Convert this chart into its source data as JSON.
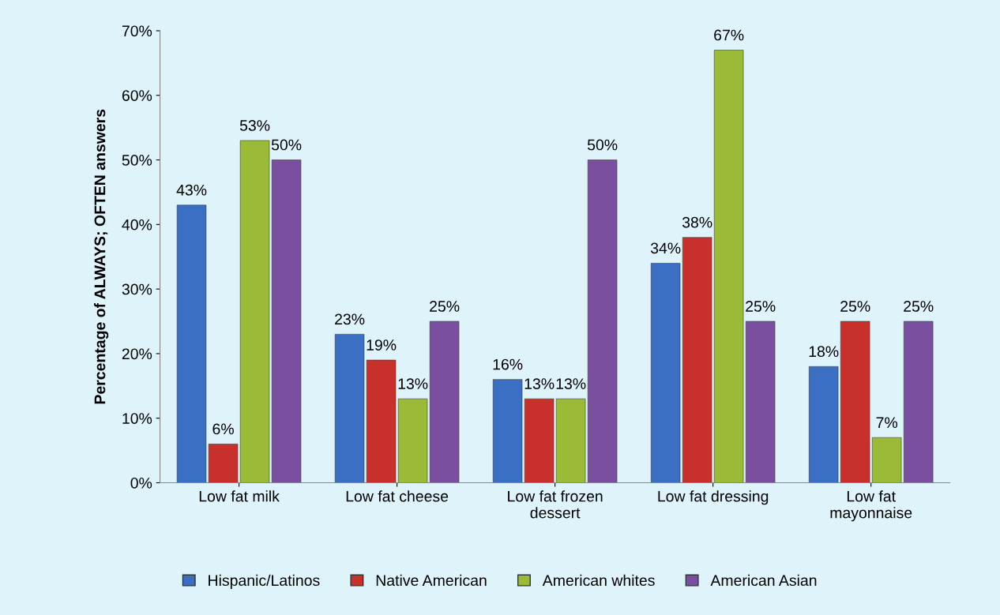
{
  "chart_data": {
    "type": "bar",
    "ylabel": "Percentage of ALWAYS; OFTEN answers",
    "categories": [
      "Low fat milk",
      "Low fat cheese",
      "Low fat frozen\ndessert",
      "Low fat dressing",
      "Low fat\nmayonnaise"
    ],
    "series": [
      {
        "name": "Hispanic/Latinos",
        "color": "#3a6fc4",
        "values": [
          43,
          23,
          16,
          34,
          18
        ],
        "value_labels": [
          "43%",
          "23%",
          "16%",
          "34%",
          "18%"
        ]
      },
      {
        "name": "Native American",
        "color": "#c8302c",
        "values": [
          6,
          19,
          13,
          38,
          25
        ],
        "value_labels": [
          "6%",
          "19%",
          "13%",
          "38%",
          "25%"
        ]
      },
      {
        "name": "American whites",
        "color": "#9bbb38",
        "values": [
          53,
          13,
          13,
          67,
          7
        ],
        "value_labels": [
          "53%",
          "13%",
          "13%",
          "67%",
          "7%"
        ]
      },
      {
        "name": "American Asian",
        "color": "#7b4fa0",
        "values": [
          50,
          25,
          50,
          25,
          25
        ],
        "value_labels": [
          "50%",
          "25%",
          "50%",
          "25%",
          "25%"
        ]
      }
    ],
    "ylim": [
      0,
      70
    ],
    "yticks": [
      {
        "value": 0,
        "label": "0%"
      },
      {
        "value": 10,
        "label": "10%"
      },
      {
        "value": 20,
        "label": "20%"
      },
      {
        "value": 30,
        "label": "30%"
      },
      {
        "value": 40,
        "label": "40%"
      },
      {
        "value": 50,
        "label": "50%"
      },
      {
        "value": 60,
        "label": "60%"
      },
      {
        "value": 70,
        "label": "70%"
      }
    ],
    "grid": false,
    "legend": "bottom"
  }
}
